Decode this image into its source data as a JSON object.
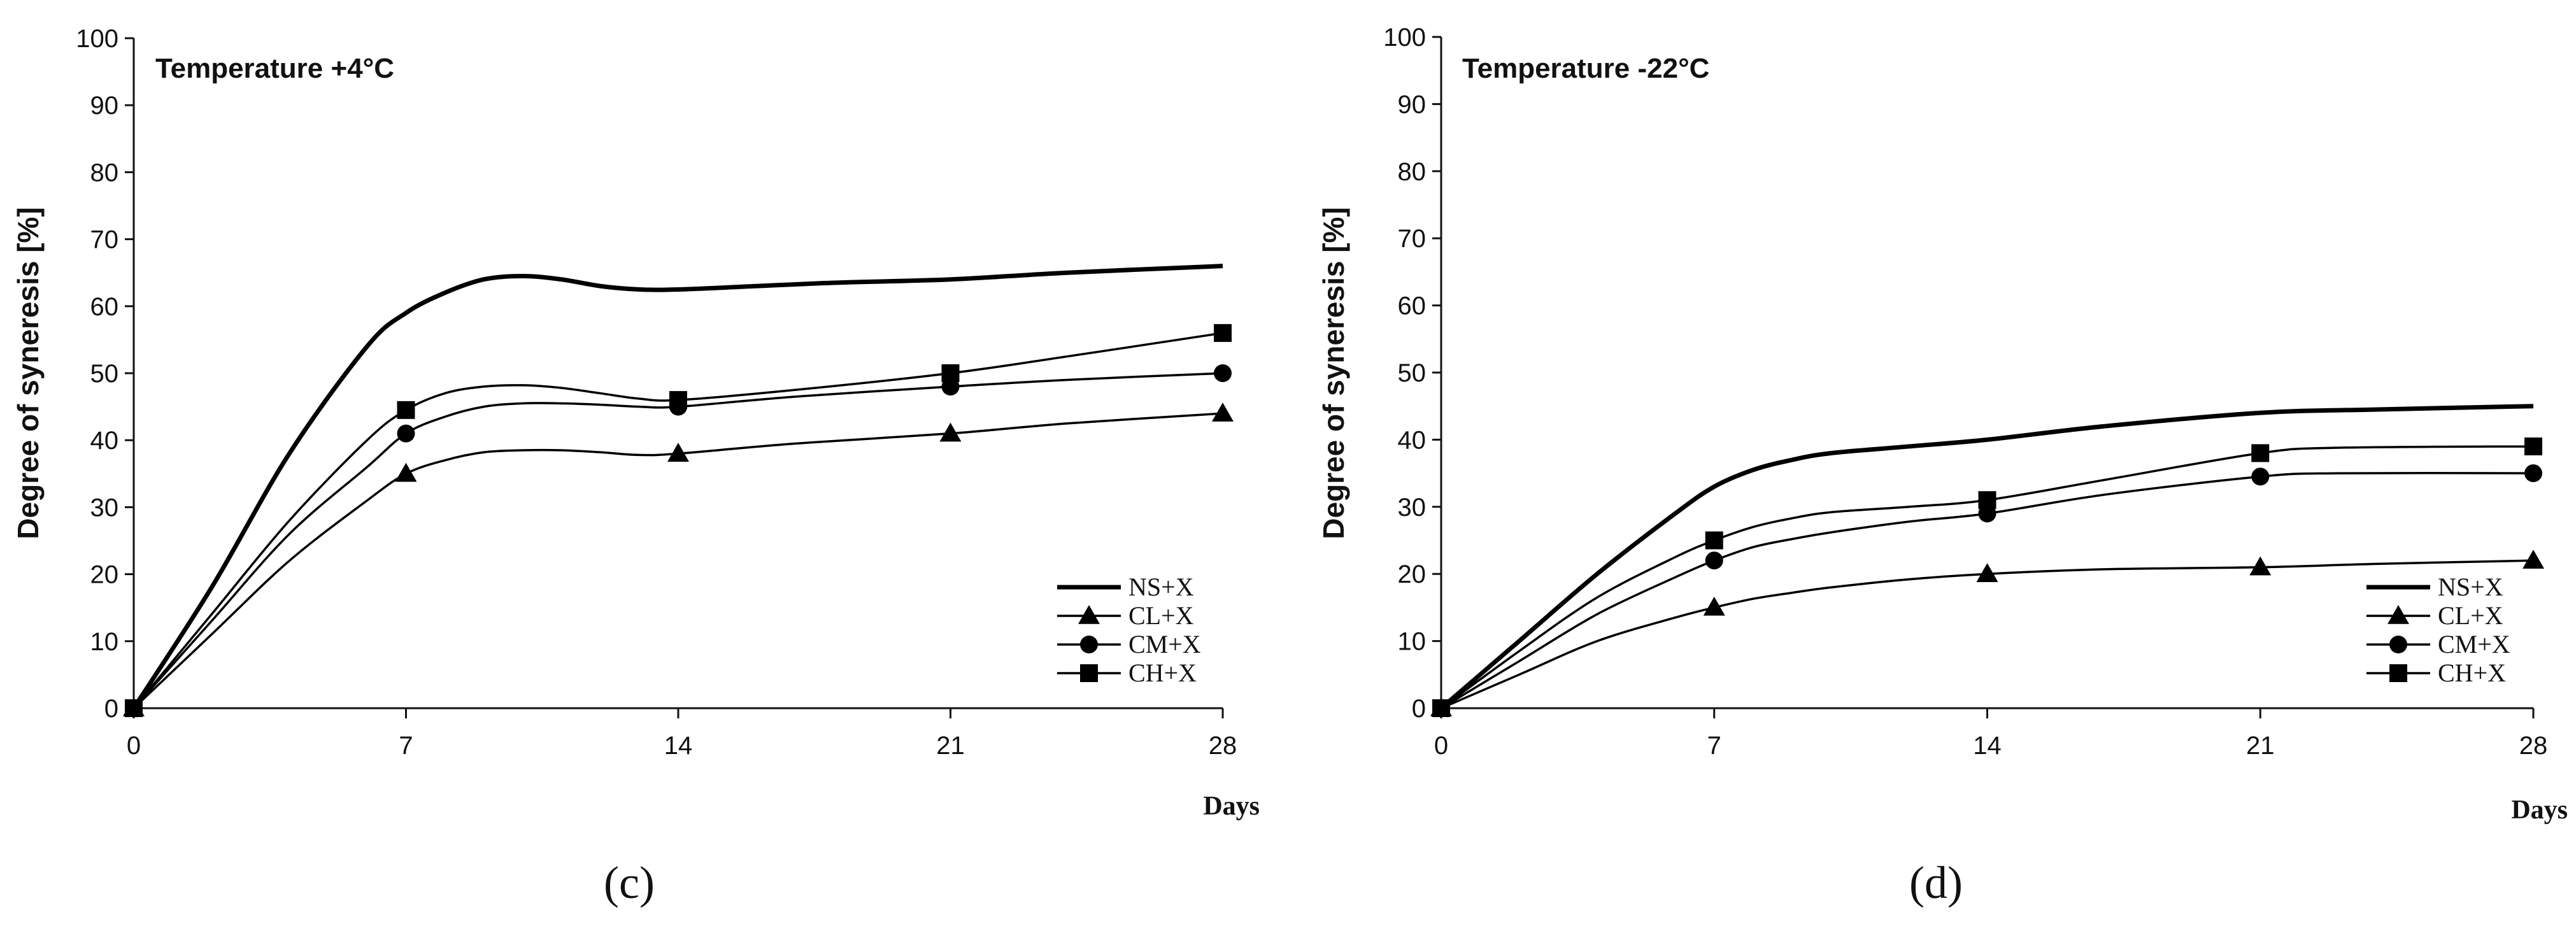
{
  "chart_data": [
    {
      "type": "line",
      "panel_caption": "(c)",
      "title": "Temperature +4°C",
      "xlabel": "Days",
      "ylabel": "Degree of syneresis [%]",
      "xticks": [
        0,
        7,
        14,
        21,
        28
      ],
      "yticks": [
        0,
        10,
        20,
        30,
        40,
        50,
        60,
        70,
        80,
        90,
        100
      ],
      "xlim": [
        0,
        28
      ],
      "ylim": [
        0,
        100
      ],
      "legend_position": "bottom-right",
      "series": [
        {
          "name": "NS+X",
          "marker": "none",
          "x": [
            0,
            7,
            14,
            21,
            28
          ],
          "values": [
            0,
            59,
            62.5,
            64,
            66
          ],
          "curve": [
            [
              0,
              0
            ],
            [
              2,
              18
            ],
            [
              4,
              38
            ],
            [
              6,
              54
            ],
            [
              7,
              59
            ],
            [
              8,
              62
            ],
            [
              9,
              64
            ],
            [
              10,
              64.5
            ],
            [
              11,
              64
            ],
            [
              12,
              63
            ],
            [
              13,
              62.5
            ],
            [
              14,
              62.5
            ],
            [
              16,
              63
            ],
            [
              18,
              63.5
            ],
            [
              21,
              64
            ],
            [
              24,
              65
            ],
            [
              28,
              66
            ]
          ]
        },
        {
          "name": "CL+X",
          "marker": "triangle",
          "x": [
            0,
            7,
            14,
            21,
            28
          ],
          "values": [
            0,
            35,
            38,
            41,
            44
          ],
          "curve": [
            [
              0,
              0
            ],
            [
              2,
              11
            ],
            [
              4,
              22
            ],
            [
              6,
              31
            ],
            [
              7,
              35
            ],
            [
              8,
              37
            ],
            [
              9,
              38.2
            ],
            [
              10,
              38.5
            ],
            [
              11,
              38.5
            ],
            [
              12,
              38.2
            ],
            [
              13,
              37.8
            ],
            [
              14,
              38
            ],
            [
              17,
              39.5
            ],
            [
              21,
              41
            ],
            [
              24,
              42.5
            ],
            [
              28,
              44
            ]
          ]
        },
        {
          "name": "CM+X",
          "marker": "circle",
          "x": [
            0,
            7,
            14,
            21,
            28
          ],
          "values": [
            0,
            41,
            45,
            48,
            50
          ],
          "curve": [
            [
              0,
              0
            ],
            [
              2,
              13
            ],
            [
              4,
              26
            ],
            [
              6,
              36
            ],
            [
              7,
              41
            ],
            [
              8,
              43.5
            ],
            [
              9,
              45
            ],
            [
              10,
              45.5
            ],
            [
              11,
              45.5
            ],
            [
              12,
              45.3
            ],
            [
              13,
              45
            ],
            [
              14,
              45
            ],
            [
              17,
              46.5
            ],
            [
              21,
              48
            ],
            [
              24,
              49
            ],
            [
              28,
              50
            ]
          ]
        },
        {
          "name": "CH+X",
          "marker": "square",
          "x": [
            0,
            7,
            14,
            21,
            28
          ],
          "values": [
            0,
            44.5,
            46,
            50,
            56
          ],
          "curve": [
            [
              0,
              0
            ],
            [
              2,
              14
            ],
            [
              4,
              28
            ],
            [
              6,
              40
            ],
            [
              7,
              44.5
            ],
            [
              8,
              47
            ],
            [
              9,
              48
            ],
            [
              10,
              48.2
            ],
            [
              11,
              47.8
            ],
            [
              12,
              47
            ],
            [
              13,
              46.2
            ],
            [
              14,
              46
            ],
            [
              17,
              47.5
            ],
            [
              21,
              50
            ],
            [
              24,
              52.5
            ],
            [
              28,
              56
            ]
          ]
        }
      ]
    },
    {
      "type": "line",
      "panel_caption": "(d)",
      "title": "Temperature -22°C",
      "xlabel": "Days",
      "ylabel": "Degree of syneresis [%]",
      "xticks": [
        0,
        7,
        14,
        21,
        28
      ],
      "yticks": [
        0,
        10,
        20,
        30,
        40,
        50,
        60,
        70,
        80,
        90,
        100
      ],
      "xlim": [
        0,
        28
      ],
      "ylim": [
        0,
        100
      ],
      "legend_position": "bottom-right",
      "series": [
        {
          "name": "NS+X",
          "marker": "none",
          "x": [
            0,
            7,
            14,
            21,
            28
          ],
          "values": [
            0,
            33,
            40,
            44,
            45
          ],
          "curve": [
            [
              0,
              0
            ],
            [
              2,
              10
            ],
            [
              4,
              20
            ],
            [
              6,
              29
            ],
            [
              7,
              33
            ],
            [
              8,
              35.5
            ],
            [
              9,
              37
            ],
            [
              10,
              38
            ],
            [
              12,
              39
            ],
            [
              14,
              40
            ],
            [
              17,
              42
            ],
            [
              21,
              44
            ],
            [
              24,
              44.5
            ],
            [
              28,
              45
            ]
          ]
        },
        {
          "name": "CL+X",
          "marker": "triangle",
          "x": [
            0,
            7,
            14,
            21,
            28
          ],
          "values": [
            0,
            15,
            20,
            21,
            22
          ],
          "curve": [
            [
              0,
              0
            ],
            [
              2,
              5
            ],
            [
              4,
              10
            ],
            [
              6,
              13.5
            ],
            [
              7,
              15
            ],
            [
              8,
              16.3
            ],
            [
              9,
              17.2
            ],
            [
              10,
              18
            ],
            [
              12,
              19.2
            ],
            [
              14,
              20
            ],
            [
              17,
              20.7
            ],
            [
              21,
              21
            ],
            [
              24,
              21.5
            ],
            [
              28,
              22
            ]
          ]
        },
        {
          "name": "CM+X",
          "marker": "circle",
          "x": [
            0,
            7,
            14,
            21,
            28
          ],
          "values": [
            0,
            22,
            29,
            34.5,
            35
          ],
          "curve": [
            [
              0,
              0
            ],
            [
              2,
              7
            ],
            [
              4,
              14
            ],
            [
              6,
              19.5
            ],
            [
              7,
              22
            ],
            [
              8,
              24
            ],
            [
              9,
              25.2
            ],
            [
              10,
              26.2
            ],
            [
              12,
              27.8
            ],
            [
              14,
              29
            ],
            [
              17,
              31.8
            ],
            [
              21,
              34.5
            ],
            [
              23,
              35
            ],
            [
              28,
              35
            ]
          ]
        },
        {
          "name": "CH+X",
          "marker": "square",
          "x": [
            0,
            7,
            14,
            21,
            28
          ],
          "values": [
            0,
            25,
            31,
            38,
            39
          ],
          "curve": [
            [
              0,
              0
            ],
            [
              2,
              8.5
            ],
            [
              4,
              16.5
            ],
            [
              6,
              22.5
            ],
            [
              7,
              25
            ],
            [
              8,
              27
            ],
            [
              9,
              28.3
            ],
            [
              10,
              29.2
            ],
            [
              12,
              30
            ],
            [
              14,
              31
            ],
            [
              17,
              34
            ],
            [
              21,
              38
            ],
            [
              23,
              38.8
            ],
            [
              28,
              39
            ]
          ]
        }
      ]
    }
  ]
}
